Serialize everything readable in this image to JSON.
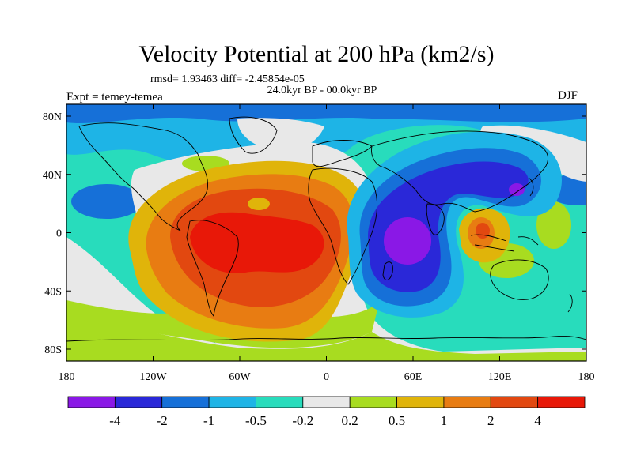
{
  "title": "Velocity Potential at 200 hPa (km2/s)",
  "stats_line": "rmsd= 1.93463 diff= -2.45854e-05",
  "period_line": "24.0kyr BP - 00.0kyr BP",
  "experiment_label": "Expt = temey-temea",
  "season_label": "DJF",
  "colors": {
    "bins": [
      "#8a18e6",
      "#2a28d8",
      "#1670d8",
      "#1eb4e6",
      "#28dcbc",
      "#e8e8e8",
      "#a8dc20",
      "#e0b40a",
      "#e87c12",
      "#e24810",
      "#e81808"
    ],
    "land_outline": "#000000"
  },
  "map": {
    "y_axis_labels": [
      "80N",
      "40N",
      "0",
      "40S",
      "80S"
    ],
    "x_axis_labels": [
      "180",
      "120W",
      "60W",
      "0",
      "60E",
      "120E",
      "180"
    ]
  },
  "colorbar": {
    "labels": [
      "-4",
      "-2",
      "-1",
      "-0.5",
      "-0.2",
      "0.2",
      "0.5",
      "1",
      "2",
      "4"
    ]
  }
}
